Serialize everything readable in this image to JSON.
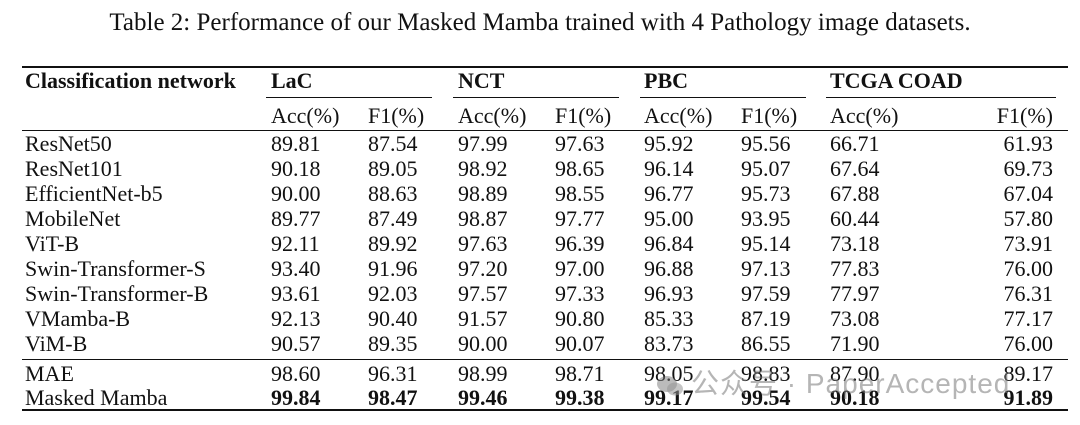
{
  "caption": "Table 2: Performance of our Masked Mamba trained with 4 Pathology image datasets.",
  "header": {
    "network_label": "Classification network",
    "datasets": [
      "LaC",
      "NCT",
      "PBC",
      "TCGA COAD"
    ],
    "metrics": [
      "Acc(%)",
      "F1(%)",
      "Acc(%)",
      "F1(%)",
      "Acc(%)",
      "F1(%)",
      "Acc(%)",
      "F1(%)"
    ]
  },
  "rows": [
    {
      "name": "ResNet50",
      "values": [
        "89.81",
        "87.54",
        "97.99",
        "97.63",
        "95.92",
        "95.56",
        "66.71",
        "61.93"
      ],
      "bold": false
    },
    {
      "name": "ResNet101",
      "values": [
        "90.18",
        "89.05",
        "98.92",
        "98.65",
        "96.14",
        "95.07",
        "67.64",
        "69.73"
      ],
      "bold": false
    },
    {
      "name": "EfficientNet-b5",
      "values": [
        "90.00",
        "88.63",
        "98.89",
        "98.55",
        "96.77",
        "95.73",
        "67.88",
        "67.04"
      ],
      "bold": false
    },
    {
      "name": "MobileNet",
      "values": [
        "89.77",
        "87.49",
        "98.87",
        "97.77",
        "95.00",
        "93.95",
        "60.44",
        "57.80"
      ],
      "bold": false
    },
    {
      "name": "ViT-B",
      "values": [
        "92.11",
        "89.92",
        "97.63",
        "96.39",
        "96.84",
        "95.14",
        "73.18",
        "73.91"
      ],
      "bold": false
    },
    {
      "name": "Swin-Transformer-S",
      "values": [
        "93.40",
        "91.96",
        "97.20",
        "97.00",
        "96.88",
        "97.13",
        "77.83",
        "76.00"
      ],
      "bold": false
    },
    {
      "name": "Swin-Transformer-B",
      "values": [
        "93.61",
        "92.03",
        "97.57",
        "97.33",
        "96.93",
        "97.59",
        "77.97",
        "76.31"
      ],
      "bold": false
    },
    {
      "name": "VMamba-B",
      "values": [
        "92.13",
        "90.40",
        "91.57",
        "90.80",
        "85.33",
        "87.19",
        "73.08",
        "77.17"
      ],
      "bold": false
    },
    {
      "name": "ViM-B",
      "values": [
        "90.57",
        "89.35",
        "90.00",
        "90.07",
        "83.73",
        "86.55",
        "71.90",
        "76.00"
      ],
      "bold": false
    },
    {
      "name": "MAE",
      "values": [
        "98.60",
        "96.31",
        "98.99",
        "98.71",
        "98.05",
        "98.83",
        "87.90",
        "89.17"
      ],
      "bold": false
    },
    {
      "name": "Masked Mamba",
      "values": [
        "99.84",
        "98.47",
        "99.46",
        "99.38",
        "99.17",
        "99.54",
        "90.18",
        "91.89"
      ],
      "bold": true
    }
  ],
  "watermark": "公众号 · PaperAccepted"
}
